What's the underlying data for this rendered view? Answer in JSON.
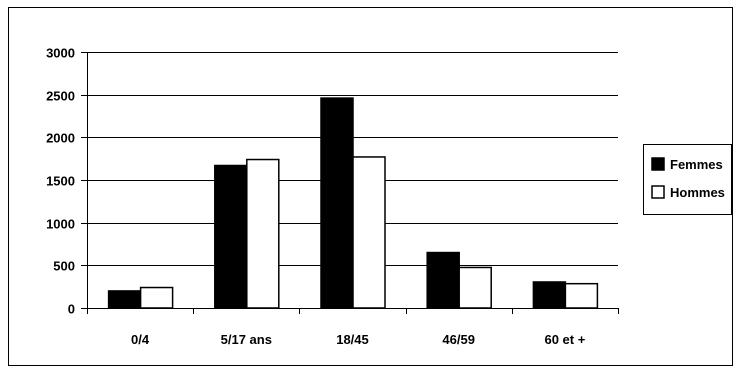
{
  "chart_data": {
    "type": "bar",
    "categories": [
      "0/4",
      "5/17 ans",
      "18/45",
      "46/59",
      "60 et +"
    ],
    "series": [
      {
        "name": "Femmes",
        "values": [
          200,
          1670,
          2460,
          650,
          305
        ],
        "color": "#000000"
      },
      {
        "name": "Hommes",
        "values": [
          240,
          1740,
          1770,
          475,
          285
        ],
        "color": "#ffffff"
      }
    ],
    "ylim": [
      0,
      3000
    ],
    "yticks": [
      0,
      500,
      1000,
      1500,
      2000,
      2500,
      3000
    ],
    "grid": true,
    "legend_position": "right"
  }
}
